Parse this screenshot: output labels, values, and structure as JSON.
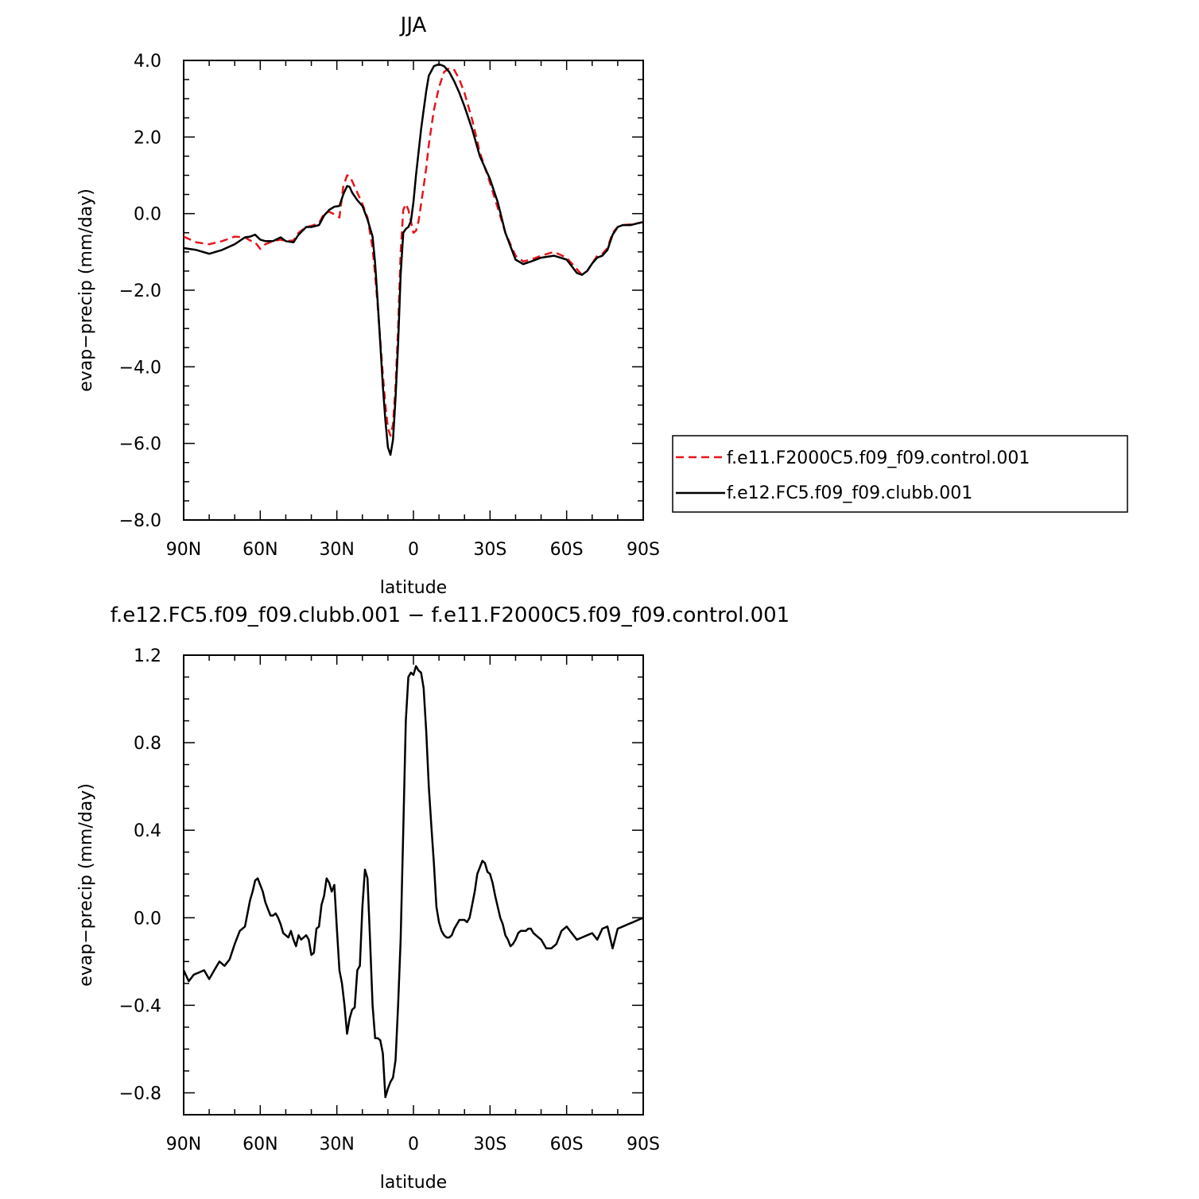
{
  "chart_data": [
    {
      "type": "line",
      "title": "JJA",
      "xlabel": "latitude",
      "ylabel": "evap−precip (mm/day)",
      "xlim": [
        90,
        -90
      ],
      "ylim": [
        -8.0,
        4.0
      ],
      "xticks": [
        {
          "value": 90,
          "label": "90N"
        },
        {
          "value": 60,
          "label": "60N"
        },
        {
          "value": 30,
          "label": "30N"
        },
        {
          "value": 0,
          "label": "0"
        },
        {
          "value": -30,
          "label": "30S"
        },
        {
          "value": -60,
          "label": "60S"
        },
        {
          "value": -90,
          "label": "90S"
        }
      ],
      "yticks": [
        {
          "value": 4.0,
          "label": "4.0"
        },
        {
          "value": 2.0,
          "label": "2.0"
        },
        {
          "value": 0.0,
          "label": "0.0"
        },
        {
          "value": -2.0,
          "label": "−2.0"
        },
        {
          "value": -4.0,
          "label": "−4.0"
        },
        {
          "value": -6.0,
          "label": "−6.0"
        },
        {
          "value": -8.0,
          "label": "−8.0"
        }
      ],
      "grid": false,
      "legend": "right",
      "series": [
        {
          "name": "f.e11.F2000C5.f09_f09.control.001",
          "color": "#e8141b",
          "dash": "dashed",
          "x": [
            90,
            85,
            80,
            75,
            70,
            66,
            64,
            62,
            60,
            58,
            55,
            52,
            50,
            47,
            45,
            42,
            40,
            37,
            35,
            33,
            31,
            29,
            27.5,
            26,
            25,
            24,
            22,
            20,
            18,
            16,
            15,
            14,
            13,
            12,
            11,
            10,
            9,
            8,
            7,
            6,
            5,
            4,
            3,
            2,
            1,
            0,
            -1,
            -2,
            -3,
            -4,
            -5,
            -6,
            -8,
            -10,
            -12,
            -14,
            -16,
            -18,
            -20,
            -23,
            -26,
            -30,
            -33,
            -36,
            -40,
            -43,
            -46,
            -50,
            -55,
            -60,
            -64,
            -66,
            -68,
            -70,
            -72,
            -74,
            -76,
            -78,
            -80,
            -82,
            -85,
            -88,
            -90
          ],
          "y": [
            -0.6,
            -0.75,
            -0.8,
            -0.72,
            -0.6,
            -0.62,
            -0.7,
            -0.75,
            -0.92,
            -0.8,
            -0.72,
            -0.68,
            -0.72,
            -0.7,
            -0.5,
            -0.35,
            -0.32,
            -0.25,
            0.0,
            0.05,
            -0.02,
            -0.1,
            0.7,
            1.0,
            0.98,
            0.85,
            0.55,
            0.25,
            -0.1,
            -0.9,
            -1.6,
            -2.4,
            -3.3,
            -4.2,
            -5.0,
            -5.6,
            -5.8,
            -5.5,
            -4.5,
            -3.0,
            -1.0,
            0.1,
            0.25,
            0.1,
            -0.2,
            -0.5,
            -0.45,
            -0.2,
            0.25,
            0.7,
            1.2,
            1.8,
            2.7,
            3.3,
            3.7,
            3.8,
            3.75,
            3.5,
            3.15,
            2.45,
            1.6,
            0.8,
            0.15,
            -0.5,
            -1.1,
            -1.25,
            -1.2,
            -1.1,
            -1.0,
            -1.15,
            -1.45,
            -1.6,
            -1.5,
            -1.3,
            -1.1,
            -1.05,
            -0.9,
            -0.5,
            -0.35,
            -0.3,
            -0.28,
            -0.25,
            -0.22
          ]
        },
        {
          "name": "f.e12.FC5.f09_f09.clubb.001",
          "color": "#000000",
          "dash": "solid",
          "x": [
            90,
            85,
            80,
            75,
            70,
            66,
            64,
            62,
            60,
            58,
            55,
            52,
            50,
            47,
            45,
            42,
            40,
            37,
            35,
            33,
            31,
            29,
            27.5,
            26,
            25,
            24,
            22,
            20,
            18,
            16,
            15,
            14,
            13,
            12,
            11,
            10,
            9,
            8,
            7,
            6,
            5,
            4,
            3,
            2,
            1,
            0,
            -1,
            -2,
            -3,
            -4,
            -5,
            -6,
            -8,
            -10,
            -12,
            -14,
            -16,
            -18,
            -20,
            -23,
            -26,
            -30,
            -33,
            -36,
            -40,
            -43,
            -46,
            -50,
            -55,
            -60,
            -64,
            -66,
            -68,
            -70,
            -72,
            -74,
            -76,
            -78,
            -80,
            -82,
            -85,
            -88,
            -90
          ],
          "y": [
            -0.9,
            -0.95,
            -1.05,
            -0.95,
            -0.8,
            -0.62,
            -0.6,
            -0.55,
            -0.68,
            -0.72,
            -0.72,
            -0.62,
            -0.72,
            -0.75,
            -0.55,
            -0.35,
            -0.35,
            -0.3,
            -0.05,
            0.1,
            0.18,
            0.2,
            0.5,
            0.72,
            0.7,
            0.55,
            0.35,
            0.2,
            -0.15,
            -0.6,
            -1.3,
            -2.3,
            -3.4,
            -4.5,
            -5.4,
            -6.1,
            -6.3,
            -5.9,
            -4.8,
            -3.4,
            -1.6,
            -0.5,
            -0.4,
            -0.35,
            -0.2,
            0.3,
            1.0,
            1.6,
            2.2,
            2.7,
            3.2,
            3.6,
            3.85,
            3.9,
            3.85,
            3.7,
            3.45,
            3.15,
            2.8,
            2.2,
            1.5,
            0.9,
            0.3,
            -0.5,
            -1.2,
            -1.32,
            -1.25,
            -1.15,
            -1.1,
            -1.2,
            -1.55,
            -1.6,
            -1.5,
            -1.3,
            -1.15,
            -1.1,
            -0.95,
            -0.55,
            -0.35,
            -0.3,
            -0.3,
            -0.25,
            -0.22
          ]
        }
      ]
    },
    {
      "type": "line",
      "title": "f.e12.FC5.f09_f09.clubb.001 − f.e11.F2000C5.f09_f09.control.001",
      "xlabel": "latitude",
      "ylabel": "evap−precip (mm/day)",
      "xlim": [
        90,
        -90
      ],
      "ylim": [
        -0.9,
        1.2
      ],
      "xticks": [
        {
          "value": 90,
          "label": "90N"
        },
        {
          "value": 60,
          "label": "60N"
        },
        {
          "value": 30,
          "label": "30N"
        },
        {
          "value": 0,
          "label": "0"
        },
        {
          "value": -30,
          "label": "30S"
        },
        {
          "value": -60,
          "label": "60S"
        },
        {
          "value": -90,
          "label": "90S"
        }
      ],
      "yticks": [
        {
          "value": 1.2,
          "label": "1.2"
        },
        {
          "value": 0.8,
          "label": "0.8"
        },
        {
          "value": 0.4,
          "label": "0.4"
        },
        {
          "value": 0.0,
          "label": "0.0"
        },
        {
          "value": -0.4,
          "label": "−0.4"
        },
        {
          "value": -0.8,
          "label": "−0.8"
        }
      ],
      "grid": false,
      "series": [
        {
          "color": "#000000",
          "dash": "solid",
          "x": [
            90,
            88,
            86,
            84,
            82,
            80,
            78,
            76,
            74,
            72,
            70,
            68,
            66,
            65,
            64,
            63,
            62,
            61,
            60,
            59,
            58,
            57,
            56,
            55,
            54,
            53,
            52,
            51,
            50,
            49,
            48,
            47,
            46,
            45,
            44,
            43,
            42,
            41,
            40,
            39,
            38,
            37,
            36,
            35,
            34,
            33,
            32,
            31,
            30,
            29,
            28,
            27,
            26,
            25,
            24,
            23,
            22,
            21,
            20,
            19,
            18,
            17,
            16,
            15,
            14,
            13,
            12,
            11,
            10,
            9,
            8,
            7,
            6,
            5,
            4,
            3,
            2,
            1,
            0,
            -1,
            -2,
            -3,
            -4,
            -5,
            -6,
            -7,
            -8,
            -9,
            -10,
            -11,
            -12,
            -13,
            -14,
            -15,
            -16,
            -17,
            -18,
            -19,
            -20,
            -21,
            -22,
            -23,
            -24,
            -25,
            -26,
            -27,
            -28,
            -29,
            -30,
            -31,
            -32,
            -33,
            -34,
            -35,
            -36,
            -37,
            -38,
            -39,
            -40,
            -41,
            -42,
            -43,
            -44,
            -45,
            -46,
            -47,
            -48,
            -49,
            -50,
            -52,
            -54,
            -56,
            -58,
            -60,
            -62,
            -64,
            -66,
            -68,
            -70,
            -72,
            -74,
            -76,
            -78,
            -80,
            -82,
            -84,
            -86,
            -88,
            -90
          ],
          "y": [
            -0.24,
            -0.29,
            -0.26,
            -0.25,
            -0.24,
            -0.28,
            -0.24,
            -0.2,
            -0.22,
            -0.19,
            -0.12,
            -0.06,
            -0.04,
            0.02,
            0.08,
            0.12,
            0.17,
            0.18,
            0.15,
            0.12,
            0.07,
            0.04,
            0.01,
            0.01,
            0.02,
            0.0,
            -0.03,
            -0.07,
            -0.08,
            -0.09,
            -0.06,
            -0.1,
            -0.13,
            -0.08,
            -0.1,
            -0.09,
            -0.08,
            -0.1,
            -0.17,
            -0.16,
            -0.05,
            -0.04,
            0.06,
            0.1,
            0.18,
            0.16,
            0.12,
            0.15,
            -0.05,
            -0.24,
            -0.3,
            -0.4,
            -0.53,
            -0.46,
            -0.42,
            -0.41,
            -0.24,
            -0.22,
            0.05,
            0.22,
            0.18,
            -0.1,
            -0.4,
            -0.55,
            -0.55,
            -0.56,
            -0.62,
            -0.82,
            -0.78,
            -0.75,
            -0.73,
            -0.65,
            -0.4,
            -0.1,
            0.4,
            0.9,
            1.1,
            1.12,
            1.11,
            1.15,
            1.13,
            1.12,
            1.05,
            0.85,
            0.6,
            0.42,
            0.25,
            0.05,
            -0.02,
            -0.06,
            -0.08,
            -0.09,
            -0.09,
            -0.08,
            -0.05,
            -0.03,
            -0.01,
            -0.01,
            -0.01,
            -0.02,
            0.0,
            0.06,
            0.12,
            0.2,
            0.23,
            0.26,
            0.25,
            0.21,
            0.2,
            0.16,
            0.1,
            0.05,
            0.0,
            -0.03,
            -0.08,
            -0.1,
            -0.13,
            -0.12,
            -0.1,
            -0.07,
            -0.06,
            -0.06,
            -0.06,
            -0.05,
            -0.05,
            -0.07,
            -0.08,
            -0.09,
            -0.1,
            -0.14,
            -0.14,
            -0.12,
            -0.06,
            -0.04,
            -0.07,
            -0.1,
            -0.09,
            -0.08,
            -0.07,
            -0.1,
            -0.05,
            -0.04,
            -0.14,
            -0.05,
            -0.04,
            -0.03,
            -0.02,
            -0.01,
            0.0
          ]
        }
      ]
    }
  ],
  "legend": {
    "control_label": "f.e11.F2000C5.f09_f09.control.001",
    "clubb_label": "f.e12.FC5.f09_f09.clubb.001"
  }
}
